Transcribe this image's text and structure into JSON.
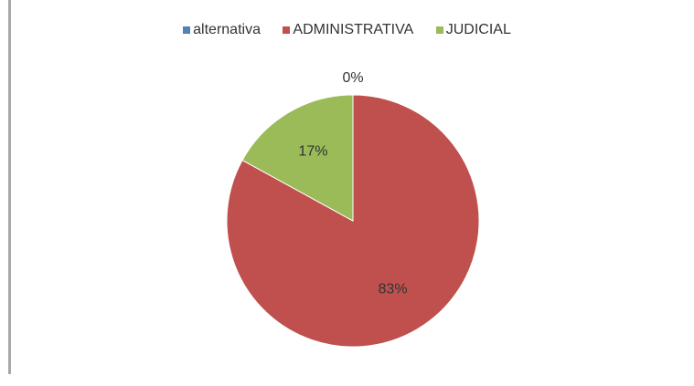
{
  "chart_data": {
    "type": "pie",
    "title": "",
    "categories": [
      "alternativa",
      "ADMINISTRATIVA",
      "JUDICIAL"
    ],
    "values": [
      0,
      83,
      17
    ],
    "labels": [
      "0%",
      "83%",
      "17%"
    ],
    "colors": [
      "#4f81bd",
      "#c0504d",
      "#9bbb59"
    ],
    "legend_position": "top",
    "start_angle": "12 o'clock",
    "direction": "clockwise"
  }
}
